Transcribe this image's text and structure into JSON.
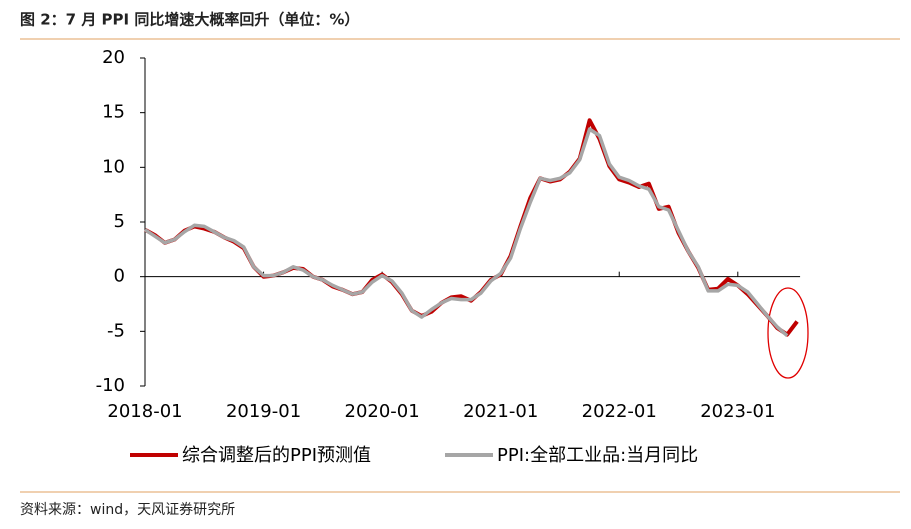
{
  "chart_data": {
    "type": "line",
    "title": "图 2：7 月 PPI 同比增速大概率回升（单位：%）",
    "source": "资料来源：wind，天风证券研究所",
    "categories": [
      "2018-01",
      null,
      null,
      null,
      null,
      null,
      null,
      null,
      null,
      null,
      null,
      null,
      "2019-01",
      null,
      null,
      null,
      null,
      null,
      null,
      null,
      null,
      null,
      null,
      null,
      "2020-01",
      null,
      null,
      null,
      null,
      null,
      null,
      null,
      null,
      null,
      null,
      null,
      "2021-01",
      null,
      null,
      null,
      null,
      null,
      null,
      null,
      null,
      null,
      null,
      null,
      "2022-01",
      null,
      null,
      null,
      null,
      null,
      null,
      null,
      null,
      null,
      null,
      null,
      "2023-01",
      null,
      null,
      null,
      null,
      null,
      null
    ],
    "series": [
      {
        "name": "综合调整后的PPI预测值",
        "color": "#c00000",
        "values": [
          4.3,
          3.8,
          3.1,
          3.4,
          4.2,
          4.6,
          4.4,
          4.1,
          3.6,
          3.2,
          2.6,
          0.9,
          0.0,
          0.1,
          0.4,
          0.8,
          0.7,
          0.0,
          -0.3,
          -0.9,
          -1.2,
          -1.6,
          -1.4,
          -0.3,
          0.2,
          -0.5,
          -1.6,
          -3.1,
          -3.6,
          -3.2,
          -2.4,
          -1.9,
          -1.8,
          -2.2,
          -1.4,
          -0.3,
          0.2,
          1.9,
          4.6,
          7.2,
          9.0,
          8.7,
          8.9,
          9.6,
          10.8,
          14.3,
          12.6,
          10.1,
          8.9,
          8.6,
          8.2,
          8.5,
          6.2,
          6.4,
          4.0,
          2.3,
          0.8,
          -1.2,
          -1.1,
          -0.2,
          -0.8,
          -1.6,
          -2.6,
          -3.6,
          -4.7,
          -5.3,
          -4.1
        ]
      },
      {
        "name": "PPI:全部工业品:当月同比",
        "color": "#a6a6a6",
        "values": [
          4.3,
          3.7,
          3.1,
          3.4,
          4.1,
          4.7,
          4.6,
          4.1,
          3.6,
          3.3,
          2.7,
          0.9,
          0.1,
          0.1,
          0.4,
          0.9,
          0.6,
          0.0,
          -0.3,
          -0.8,
          -1.2,
          -1.6,
          -1.4,
          -0.5,
          0.1,
          -0.4,
          -1.5,
          -3.1,
          -3.7,
          -3.0,
          -2.4,
          -2.0,
          -2.1,
          -2.1,
          -1.5,
          -0.4,
          0.3,
          1.7,
          4.4,
          6.8,
          9.0,
          8.8,
          9.0,
          9.5,
          10.7,
          13.5,
          12.9,
          10.3,
          9.1,
          8.8,
          8.3,
          8.0,
          6.4,
          6.1,
          4.2,
          2.3,
          0.9,
          -1.3,
          -1.3,
          -0.7,
          -0.8,
          -1.4,
          -2.5,
          -3.6,
          -4.6,
          -5.4,
          null
        ]
      }
    ],
    "ylim": [
      -10,
      20
    ],
    "yticks": [
      -10,
      -5,
      0,
      5,
      10,
      15,
      20
    ]
  }
}
